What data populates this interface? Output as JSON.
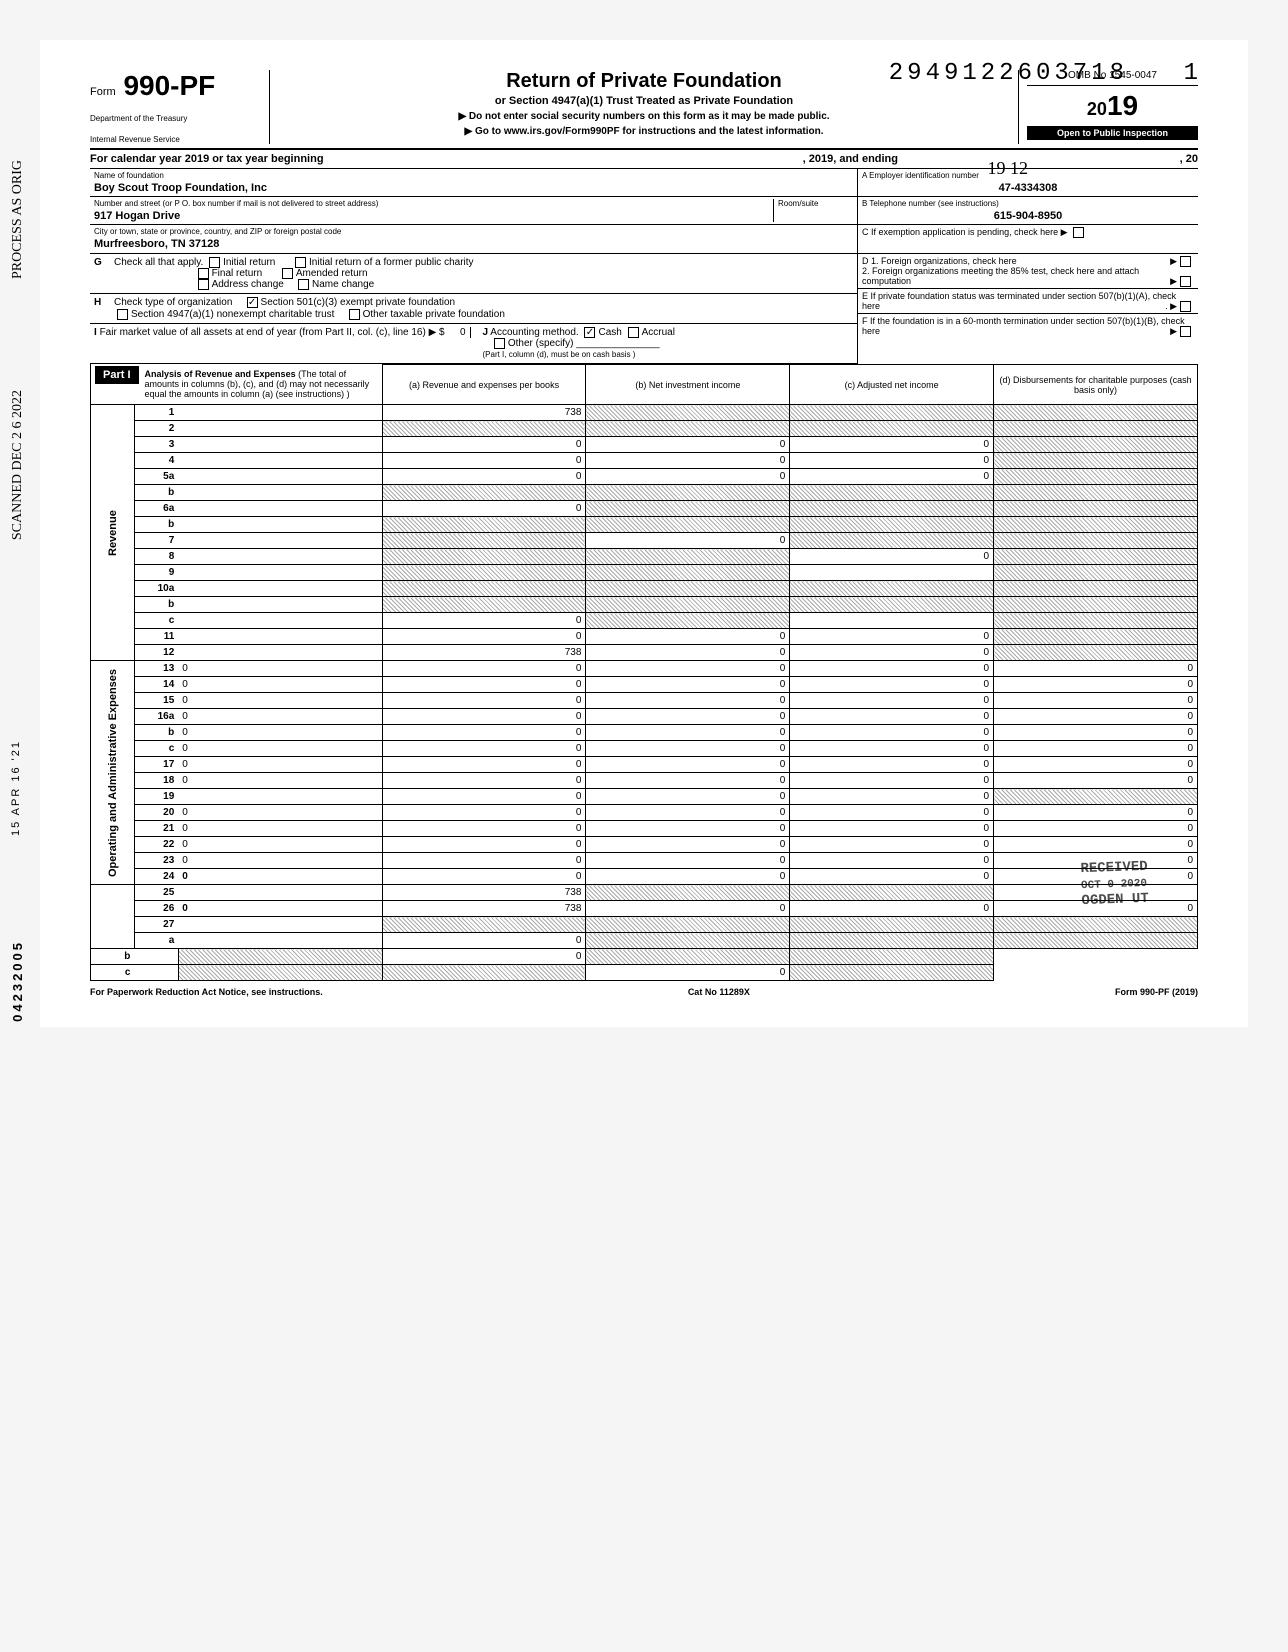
{
  "stamp_number": "2949122603718",
  "stamp_right": "1",
  "form": {
    "prefix": "Form",
    "number": "990-PF",
    "dept1": "Department of the Treasury",
    "dept2": "Internal Revenue Service",
    "title": "Return of Private Foundation",
    "subtitle": "or Section 4947(a)(1) Trust Treated as Private Foundation",
    "instr1": "▶ Do not enter social security numbers on this form as it may be made public.",
    "instr2": "▶ Go to www.irs.gov/Form990PF for instructions and the latest information.",
    "omb": "OMB No 1545-0047",
    "year": "2019",
    "inspection": "Open to Public Inspection"
  },
  "handwritten_year": "19 12",
  "cal_year": {
    "label": "For calendar year 2019 or tax year beginning",
    "mid": ", 2019, and ending",
    "end": ", 20"
  },
  "foundation": {
    "name_label": "Name of foundation",
    "name": "Boy Scout Troop Foundation, Inc",
    "addr_label": "Number and street (or P O. box number if mail is not delivered to street address)",
    "addr": "917 Hogan Drive",
    "room_label": "Room/suite",
    "city_label": "City or town, state or province, country, and ZIP or foreign postal code",
    "city": "Murfreesboro, TN  37128"
  },
  "boxA": {
    "label": "A  Employer identification number",
    "value": "47-4334308"
  },
  "boxB": {
    "label": "B  Telephone number (see instructions)",
    "value": "615-904-8950"
  },
  "boxC": {
    "label": "C  If exemption application is pending, check here ▶"
  },
  "boxD": {
    "d1": "D  1. Foreign organizations, check here",
    "d2": "2. Foreign organizations meeting the 85% test, check here and attach computation"
  },
  "boxE": {
    "label": "E  If private foundation status was terminated under section 507(b)(1)(A), check here"
  },
  "boxF": {
    "label": "F  If the foundation is in a 60-month termination under section 507(b)(1)(B), check here"
  },
  "rowG": {
    "letter": "G",
    "label": "Check all that apply.",
    "opts": [
      "Initial return",
      "Initial return of a former public charity",
      "Final return",
      "Amended return",
      "Address change",
      "Name change"
    ]
  },
  "rowH": {
    "letter": "H",
    "label": "Check type of organization",
    "opt1": "Section 501(c)(3) exempt private foundation",
    "opt2": "Section 4947(a)(1) nonexempt charitable trust",
    "opt3": "Other taxable private foundation"
  },
  "rowI": {
    "letter": "I",
    "label": "Fair market value of all assets at end of year  (from Part II, col. (c), line 16) ▶ $",
    "val": "0"
  },
  "rowJ": {
    "letter": "J",
    "label": "Accounting method.",
    "cash": "Cash",
    "accrual": "Accrual",
    "other": "Other (specify)",
    "note": "(Part I, column (d), must be on cash basis )"
  },
  "part1": {
    "label": "Part I",
    "title": "Analysis of Revenue and Expenses",
    "desc": "(The total of amounts in columns (b), (c), and (d) may not necessarily equal the amounts in column (a) (see instructions) )"
  },
  "cols": {
    "a": "(a) Revenue and expenses per books",
    "b": "(b) Net investment income",
    "c": "(c) Adjusted net income",
    "d": "(d) Disbursements for charitable purposes (cash basis only)"
  },
  "side_revenue": "Revenue",
  "side_expenses": "Operating and Administrative Expenses",
  "lines": [
    {
      "n": "1",
      "d": "",
      "a": "738",
      "b": "",
      "c": "",
      "sh": [
        "b",
        "c",
        "d"
      ]
    },
    {
      "n": "2",
      "d": "",
      "a": "",
      "b": "",
      "c": "",
      "sh": [
        "a",
        "b",
        "c",
        "d"
      ]
    },
    {
      "n": "3",
      "d": "",
      "a": "0",
      "b": "0",
      "c": "0",
      "sh": [
        "d"
      ]
    },
    {
      "n": "4",
      "d": "",
      "a": "0",
      "b": "0",
      "c": "0",
      "sh": [
        "d"
      ]
    },
    {
      "n": "5a",
      "d": "",
      "a": "0",
      "b": "0",
      "c": "0",
      "sh": [
        "d"
      ]
    },
    {
      "n": "b",
      "d": "",
      "a": "",
      "b": "",
      "c": "",
      "sh": [
        "a",
        "b",
        "c",
        "d"
      ]
    },
    {
      "n": "6a",
      "d": "",
      "a": "0",
      "b": "",
      "c": "",
      "sh": [
        "b",
        "c",
        "d"
      ]
    },
    {
      "n": "b",
      "d": "",
      "a": "",
      "b": "",
      "c": "",
      "sh": [
        "a",
        "b",
        "c",
        "d"
      ]
    },
    {
      "n": "7",
      "d": "",
      "a": "",
      "b": "0",
      "c": "",
      "sh": [
        "a",
        "c",
        "d"
      ]
    },
    {
      "n": "8",
      "d": "",
      "a": "",
      "b": "",
      "c": "0",
      "sh": [
        "a",
        "b",
        "d"
      ]
    },
    {
      "n": "9",
      "d": "",
      "a": "",
      "b": "",
      "c": "",
      "sh": [
        "a",
        "b",
        "d"
      ]
    },
    {
      "n": "10a",
      "d": "",
      "a": "",
      "b": "",
      "c": "",
      "sh": [
        "a",
        "b",
        "c",
        "d"
      ]
    },
    {
      "n": "b",
      "d": "",
      "a": "",
      "b": "",
      "c": "",
      "sh": [
        "a",
        "b",
        "c",
        "d"
      ]
    },
    {
      "n": "c",
      "d": "",
      "a": "0",
      "b": "",
      "c": "",
      "sh": [
        "b",
        "d"
      ]
    },
    {
      "n": "11",
      "d": "",
      "a": "0",
      "b": "0",
      "c": "0",
      "sh": [
        "d"
      ]
    },
    {
      "n": "12",
      "d": "",
      "a": "738",
      "b": "0",
      "c": "0",
      "sh": [
        "d"
      ],
      "bold": true
    },
    {
      "n": "13",
      "d": "0",
      "a": "0",
      "b": "0",
      "c": "0"
    },
    {
      "n": "14",
      "d": "0",
      "a": "0",
      "b": "0",
      "c": "0"
    },
    {
      "n": "15",
      "d": "0",
      "a": "0",
      "b": "0",
      "c": "0"
    },
    {
      "n": "16a",
      "d": "0",
      "a": "0",
      "b": "0",
      "c": "0"
    },
    {
      "n": "b",
      "d": "0",
      "a": "0",
      "b": "0",
      "c": "0"
    },
    {
      "n": "c",
      "d": "0",
      "a": "0",
      "b": "0",
      "c": "0"
    },
    {
      "n": "17",
      "d": "0",
      "a": "0",
      "b": "0",
      "c": "0"
    },
    {
      "n": "18",
      "d": "0",
      "a": "0",
      "b": "0",
      "c": "0"
    },
    {
      "n": "19",
      "d": "",
      "a": "0",
      "b": "0",
      "c": "0",
      "sh": [
        "d"
      ]
    },
    {
      "n": "20",
      "d": "0",
      "a": "0",
      "b": "0",
      "c": "0"
    },
    {
      "n": "21",
      "d": "0",
      "a": "0",
      "b": "0",
      "c": "0"
    },
    {
      "n": "22",
      "d": "0",
      "a": "0",
      "b": "0",
      "c": "0"
    },
    {
      "n": "23",
      "d": "0",
      "a": "0",
      "b": "0",
      "c": "0"
    },
    {
      "n": "24",
      "d": "0",
      "a": "0",
      "b": "0",
      "c": "0",
      "bold": true
    },
    {
      "n": "25",
      "d": "",
      "a": "738",
      "b": "",
      "c": "",
      "sh": [
        "b",
        "c"
      ]
    },
    {
      "n": "26",
      "d": "0",
      "a": "738",
      "b": "0",
      "c": "0",
      "bold": true
    },
    {
      "n": "27",
      "d": "",
      "a": "",
      "b": "",
      "c": "",
      "sh": [
        "a",
        "b",
        "c",
        "d"
      ]
    },
    {
      "n": "a",
      "d": "",
      "a": "0",
      "b": "",
      "c": "",
      "sh": [
        "b",
        "c",
        "d"
      ],
      "bold": true
    },
    {
      "n": "b",
      "d": "",
      "a": "",
      "b": "0",
      "c": "",
      "sh": [
        "a",
        "c",
        "d"
      ],
      "bold": true
    },
    {
      "n": "c",
      "d": "",
      "a": "",
      "b": "",
      "c": "0",
      "sh": [
        "a",
        "b",
        "d"
      ],
      "bold": true
    }
  ],
  "footer": {
    "left": "For Paperwork Reduction Act Notice, see instructions.",
    "mid": "Cat No 11289X",
    "right": "Form 990-PF (2019)"
  },
  "margin": {
    "m1": "PROCESS AS ORIG",
    "m2": "SCANNED DEC 2 6 2022",
    "m3": "15 APR 16 '21",
    "m4": "04232005"
  },
  "received": "RECEIVED",
  "ogden": "OGDEN UT",
  "colors": {
    "text": "#000000",
    "bg": "#ffffff",
    "shade": "#aaaaaa"
  }
}
